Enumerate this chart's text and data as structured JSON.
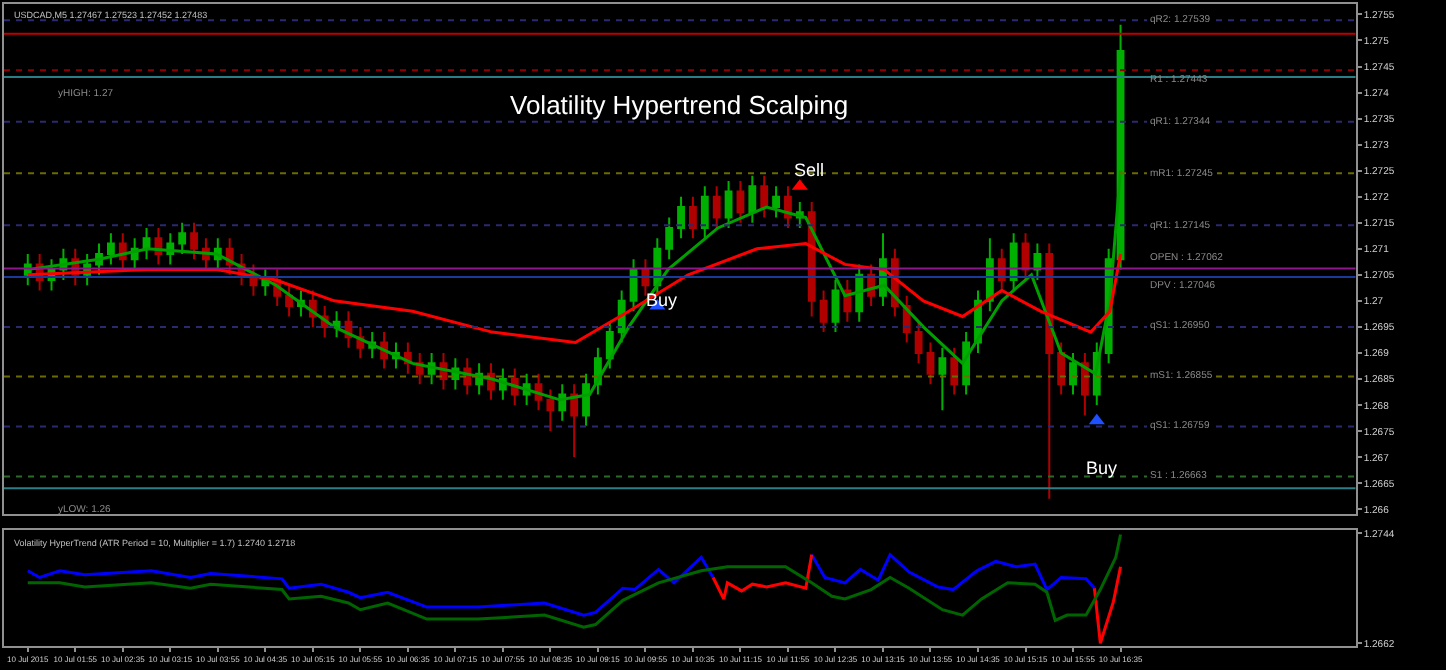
{
  "chart_data": [
    {
      "type": "candlestick",
      "title": "Volatility Hypertrend Scalping",
      "tick_labels": "y",
      "grid": false,
      "annotations": [
        "USDCAD,M5 1.27467 1.27523 1.27452 1.27483",
        "yHIGH: 1.27",
        "yLOW: 1.26",
        {
          "text": "Buy",
          "x": "2015-07-10T10:09",
          "y": 1.27
        },
        {
          "text": "Sell",
          "x": "2015-07-10T12:13",
          "y": 1.2725
        },
        {
          "text": "Buy",
          "x": "2015-07-10T16:19",
          "y": 1.2668
        }
      ],
      "x": [
        "2015-07-10T01:15",
        "2015-07-10T01:25",
        "2015-07-10T01:35",
        "2015-07-10T01:45",
        "2015-07-10T01:55",
        "2015-07-10T02:05",
        "2015-07-10T02:15",
        "2015-07-10T02:25",
        "2015-07-10T02:35",
        "2015-07-10T02:45",
        "2015-07-10T02:55",
        "2015-07-10T03:05",
        "2015-07-10T03:15",
        "2015-07-10T03:25",
        "2015-07-10T03:35",
        "2015-07-10T03:45",
        "2015-07-10T03:55",
        "2015-07-10T04:05",
        "2015-07-10T04:15",
        "2015-07-10T04:25",
        "2015-07-10T04:35",
        "2015-07-10T04:45",
        "2015-07-10T04:55",
        "2015-07-10T05:05",
        "2015-07-10T05:15",
        "2015-07-10T05:25",
        "2015-07-10T05:35",
        "2015-07-10T05:45",
        "2015-07-10T05:55",
        "2015-07-10T06:05",
        "2015-07-10T06:15",
        "2015-07-10T06:25",
        "2015-07-10T06:35",
        "2015-07-10T06:45",
        "2015-07-10T06:55",
        "2015-07-10T07:05",
        "2015-07-10T07:15",
        "2015-07-10T07:25",
        "2015-07-10T07:35",
        "2015-07-10T07:45",
        "2015-07-10T07:55",
        "2015-07-10T08:05",
        "2015-07-10T08:15",
        "2015-07-10T08:25",
        "2015-07-10T08:35",
        "2015-07-10T08:45",
        "2015-07-10T08:55",
        "2015-07-10T09:05",
        "2015-07-10T09:15",
        "2015-07-10T09:25",
        "2015-07-10T09:35",
        "2015-07-10T09:45",
        "2015-07-10T09:55",
        "2015-07-10T10:05",
        "2015-07-10T10:15",
        "2015-07-10T10:25",
        "2015-07-10T10:35",
        "2015-07-10T10:45",
        "2015-07-10T10:55",
        "2015-07-10T11:05",
        "2015-07-10T11:15",
        "2015-07-10T11:25",
        "2015-07-10T11:35",
        "2015-07-10T11:45",
        "2015-07-10T11:55",
        "2015-07-10T12:05",
        "2015-07-10T12:15",
        "2015-07-10T12:25",
        "2015-07-10T12:35",
        "2015-07-10T12:45",
        "2015-07-10T12:55",
        "2015-07-10T13:05",
        "2015-07-10T13:15",
        "2015-07-10T13:25",
        "2015-07-10T13:35",
        "2015-07-10T13:45",
        "2015-07-10T13:55",
        "2015-07-10T14:05",
        "2015-07-10T14:15",
        "2015-07-10T14:25",
        "2015-07-10T14:35",
        "2015-07-10T14:45",
        "2015-07-10T14:55",
        "2015-07-10T15:05",
        "2015-07-10T15:15",
        "2015-07-10T15:25",
        "2015-07-10T15:35",
        "2015-07-10T15:45",
        "2015-07-10T15:55",
        "2015-07-10T16:05",
        "2015-07-10T16:15",
        "2015-07-10T16:25",
        "2015-07-10T16:35"
      ],
      "ohlc": [
        [
          1.2705,
          1.2709,
          1.2703,
          1.2707
        ],
        [
          1.2707,
          1.2709,
          1.2702,
          1.2704
        ],
        [
          1.2704,
          1.2708,
          1.2702,
          1.2706
        ],
        [
          1.2706,
          1.271,
          1.2704,
          1.2708
        ],
        [
          1.2708,
          1.271,
          1.2703,
          1.2705
        ],
        [
          1.2705,
          1.2709,
          1.2703,
          1.2707
        ],
        [
          1.2707,
          1.2711,
          1.2705,
          1.2709
        ],
        [
          1.2709,
          1.2713,
          1.2707,
          1.2711
        ],
        [
          1.2711,
          1.2713,
          1.2706,
          1.2708
        ],
        [
          1.2708,
          1.2712,
          1.2706,
          1.271
        ],
        [
          1.271,
          1.2714,
          1.2708,
          1.2712
        ],
        [
          1.2712,
          1.2714,
          1.2707,
          1.2709
        ],
        [
          1.2709,
          1.2713,
          1.2707,
          1.2711
        ],
        [
          1.2711,
          1.2715,
          1.2709,
          1.2713
        ],
        [
          1.2713,
          1.2715,
          1.2708,
          1.271
        ],
        [
          1.271,
          1.2712,
          1.2706,
          1.2708
        ],
        [
          1.2708,
          1.2712,
          1.2706,
          1.271
        ],
        [
          1.271,
          1.2712,
          1.2705,
          1.2707
        ],
        [
          1.2707,
          1.2709,
          1.2703,
          1.2705
        ],
        [
          1.2705,
          1.2707,
          1.2701,
          1.2703
        ],
        [
          1.2703,
          1.2706,
          1.2701,
          1.2704
        ],
        [
          1.2704,
          1.2706,
          1.2699,
          1.2701
        ],
        [
          1.2701,
          1.2703,
          1.2697,
          1.2699
        ],
        [
          1.2699,
          1.2702,
          1.2697,
          1.27
        ],
        [
          1.27,
          1.2702,
          1.2695,
          1.2697
        ],
        [
          1.2697,
          1.2699,
          1.2693,
          1.2695
        ],
        [
          1.2695,
          1.2698,
          1.2693,
          1.2696
        ],
        [
          1.2696,
          1.2698,
          1.2691,
          1.2693
        ],
        [
          1.2693,
          1.2695,
          1.2689,
          1.2691
        ],
        [
          1.2691,
          1.2694,
          1.2689,
          1.2692
        ],
        [
          1.2692,
          1.2694,
          1.2687,
          1.2689
        ],
        [
          1.2689,
          1.2692,
          1.2687,
          1.269
        ],
        [
          1.269,
          1.2692,
          1.2686,
          1.2688
        ],
        [
          1.2688,
          1.269,
          1.2684,
          1.2686
        ],
        [
          1.2686,
          1.269,
          1.2684,
          1.2688
        ],
        [
          1.2688,
          1.269,
          1.2683,
          1.2685
        ],
        [
          1.2685,
          1.2689,
          1.2683,
          1.2687
        ],
        [
          1.2687,
          1.2689,
          1.2682,
          1.2684
        ],
        [
          1.2684,
          1.2688,
          1.2682,
          1.2686
        ],
        [
          1.2686,
          1.2688,
          1.2681,
          1.2683
        ],
        [
          1.2683,
          1.2687,
          1.2681,
          1.2685
        ],
        [
          1.2685,
          1.2687,
          1.268,
          1.2682
        ],
        [
          1.2682,
          1.2686,
          1.268,
          1.2684
        ],
        [
          1.2684,
          1.2686,
          1.2679,
          1.2681
        ],
        [
          1.2681,
          1.2683,
          1.2675,
          1.2679
        ],
        [
          1.2679,
          1.2684,
          1.2677,
          1.2682
        ],
        [
          1.2682,
          1.2684,
          1.267,
          1.2678
        ],
        [
          1.2678,
          1.2686,
          1.2676,
          1.2684
        ],
        [
          1.2684,
          1.2691,
          1.2682,
          1.2689
        ],
        [
          1.2689,
          1.2696,
          1.2687,
          1.2694
        ],
        [
          1.2694,
          1.2702,
          1.2692,
          1.27
        ],
        [
          1.27,
          1.2708,
          1.2698,
          1.2706
        ],
        [
          1.2706,
          1.2708,
          1.2701,
          1.2703
        ],
        [
          1.2703,
          1.2712,
          1.2701,
          1.271
        ],
        [
          1.271,
          1.2716,
          1.2708,
          1.2714
        ],
        [
          1.2714,
          1.272,
          1.2712,
          1.2718
        ],
        [
          1.2718,
          1.272,
          1.2712,
          1.2714
        ],
        [
          1.2714,
          1.2722,
          1.2712,
          1.272
        ],
        [
          1.272,
          1.2722,
          1.2714,
          1.2716
        ],
        [
          1.2716,
          1.2723,
          1.2714,
          1.2721
        ],
        [
          1.2721,
          1.2723,
          1.2715,
          1.2717
        ],
        [
          1.2717,
          1.2724,
          1.2715,
          1.2722
        ],
        [
          1.2722,
          1.2724,
          1.2716,
          1.2718
        ],
        [
          1.2718,
          1.2722,
          1.2716,
          1.272
        ],
        [
          1.272,
          1.2722,
          1.2714,
          1.2716
        ],
        [
          1.2716,
          1.2719,
          1.2714,
          1.2717
        ],
        [
          1.2717,
          1.2719,
          1.2697,
          1.27
        ],
        [
          1.27,
          1.2702,
          1.2694,
          1.2696
        ],
        [
          1.2696,
          1.2704,
          1.2694,
          1.2702
        ],
        [
          1.2702,
          1.2704,
          1.2696,
          1.2698
        ],
        [
          1.2698,
          1.2707,
          1.2696,
          1.2705
        ],
        [
          1.2705,
          1.2707,
          1.2699,
          1.2701
        ],
        [
          1.2701,
          1.2713,
          1.2699,
          1.2708
        ],
        [
          1.2708,
          1.271,
          1.2697,
          1.2699
        ],
        [
          1.2699,
          1.2701,
          1.2692,
          1.2694
        ],
        [
          1.2694,
          1.2696,
          1.2688,
          1.269
        ],
        [
          1.269,
          1.2692,
          1.2684,
          1.2686
        ],
        [
          1.2686,
          1.2691,
          1.2679,
          1.2689
        ],
        [
          1.2689,
          1.2691,
          1.2682,
          1.2684
        ],
        [
          1.2684,
          1.2694,
          1.2682,
          1.2692
        ],
        [
          1.2692,
          1.2702,
          1.269,
          1.27
        ],
        [
          1.27,
          1.2712,
          1.2698,
          1.2708
        ],
        [
          1.2708,
          1.271,
          1.2702,
          1.2704
        ],
        [
          1.2704,
          1.2713,
          1.2702,
          1.2711
        ],
        [
          1.2711,
          1.2713,
          1.2704,
          1.2706
        ],
        [
          1.2706,
          1.2711,
          1.2704,
          1.2709
        ],
        [
          1.2709,
          1.2711,
          1.2662,
          1.269
        ],
        [
          1.269,
          1.2692,
          1.2682,
          1.2684
        ],
        [
          1.2684,
          1.269,
          1.2682,
          1.2688
        ],
        [
          1.2688,
          1.269,
          1.2678,
          1.2682
        ],
        [
          1.2682,
          1.2692,
          1.268,
          1.269
        ],
        [
          1.269,
          1.271,
          1.2688,
          1.2708
        ],
        [
          1.2708,
          1.2753,
          1.2706,
          1.2748
        ]
      ],
      "series": [
        {
          "type": "line",
          "color": "#00a000",
          "x": [
            "2015-07-10T01:15",
            "2015-07-10T02:15",
            "2015-07-10T02:56",
            "2015-07-10T03:54",
            "2015-07-10T04:44",
            "2015-07-10T05:33",
            "2015-07-10T06:39",
            "2015-07-10T07:46",
            "2015-07-10T08:43",
            "2015-07-10T09:08",
            "2015-07-10T09:41",
            "2015-07-10T10:14",
            "2015-07-10T10:56",
            "2015-07-10T11:37",
            "2015-07-10T12:10",
            "2015-07-10T12:43",
            "2015-07-10T13:16",
            "2015-07-10T13:49",
            "2015-07-10T14:22",
            "2015-07-10T14:55",
            "2015-07-10T15:20",
            "2015-07-10T15:45",
            "2015-07-10T16:14",
            "2015-07-10T16:26",
            "2015-07-10T16:35"
          ],
          "values": [
            1.2706,
            1.2708,
            1.271,
            1.2709,
            1.2703,
            1.2695,
            1.2688,
            1.2685,
            1.2681,
            1.2682,
            1.2695,
            1.2706,
            1.2714,
            1.2718,
            1.2716,
            1.2701,
            1.2703,
            1.2695,
            1.2688,
            1.27,
            1.2705,
            1.269,
            1.2686,
            1.27,
            1.2725
          ]
        },
        {
          "type": "line",
          "color": "#ff0000",
          "x": [
            "2015-07-10T01:15",
            "2015-07-10T02:56",
            "2015-07-10T03:54",
            "2015-07-10T04:44",
            "2015-07-10T05:33",
            "2015-07-10T06:39",
            "2015-07-10T07:46",
            "2015-07-10T08:56",
            "2015-07-10T09:41",
            "2015-07-10T10:31",
            "2015-07-10T11:29",
            "2015-07-10T12:10",
            "2015-07-10T12:43",
            "2015-07-10T13:16",
            "2015-07-10T13:49",
            "2015-07-10T14:22",
            "2015-07-10T14:55",
            "2015-07-10T15:28",
            "2015-07-10T16:10",
            "2015-07-10T16:26",
            "2015-07-10T16:35"
          ],
          "values": [
            1.2705,
            1.2706,
            1.2706,
            1.2704,
            1.27,
            1.2698,
            1.2694,
            1.2692,
            1.2698,
            1.2705,
            1.271,
            1.2711,
            1.2707,
            1.2706,
            1.27,
            1.2697,
            1.2702,
            1.2698,
            1.2694,
            1.2698,
            1.2709
          ]
        },
        {
          "type": "scatter",
          "color": "#1e50ff",
          "marker": "triangle",
          "x": [
            "2015-07-10T10:05",
            "2015-07-10T16:15"
          ],
          "values": [
            1.2699,
            1.2677
          ]
        },
        {
          "type": "scatter",
          "color": "#ff0000",
          "marker": "triangle",
          "x": [
            "2015-07-10T12:05"
          ],
          "values": [
            1.2722
          ]
        }
      ],
      "ref_lines": [
        {
          "axis": "y",
          "value": 1.27539,
          "label": "qR2: 1.27539",
          "color": "#2a2a70",
          "line_style": "dotted"
        },
        {
          "axis": "y",
          "value": 1.27513,
          "label": null,
          "color": "#c00000",
          "line_style": "solid"
        },
        {
          "axis": "y",
          "value": 1.27443,
          "label": "R1 : 1.27443",
          "color": "#900000",
          "line_style": "dotted"
        },
        {
          "axis": "y",
          "value": 1.2743,
          "label": null,
          "color": "#2a7f86",
          "line_style": "solid"
        },
        {
          "axis": "y",
          "value": 1.27344,
          "label": "qR1: 1.27344",
          "color": "#2a2a70",
          "line_style": "dotted"
        },
        {
          "axis": "y",
          "value": 1.27245,
          "label": "mR1: 1.27245",
          "color": "#6b6b00",
          "line_style": "dotted"
        },
        {
          "axis": "y",
          "value": 1.27145,
          "label": "qR1: 1.27145",
          "color": "#2a2a70",
          "line_style": "dotted"
        },
        {
          "axis": "y",
          "value": 1.27062,
          "label": "OPEN : 1.27062",
          "color": "#8a1a8a",
          "line_style": "solid"
        },
        {
          "axis": "y",
          "value": 1.27046,
          "label": "DPV : 1.27046",
          "color": "#1a3a9a",
          "line_style": "solid"
        },
        {
          "axis": "y",
          "value": 1.2695,
          "label": "qS1: 1.26950",
          "color": "#2a2a70",
          "line_style": "dotted"
        },
        {
          "axis": "y",
          "value": 1.26855,
          "label": "mS1: 1.26855",
          "color": "#6b6b00",
          "line_style": "dotted"
        },
        {
          "axis": "y",
          "value": 1.26759,
          "label": "qS1: 1.26759",
          "color": "#2a2a70",
          "line_style": "dotted"
        },
        {
          "axis": "y",
          "value": 1.26663,
          "label": "S1 : 1.26663",
          "color": "#2a6b2a",
          "line_style": "dotted"
        },
        {
          "axis": "y",
          "value": 1.2664,
          "label": null,
          "color": "#2a7f86",
          "line_style": "solid"
        }
      ],
      "xlim": [
        "2015-07-10T00:55",
        "2015-07-10T19:53"
      ],
      "ylim": [
        1.2659,
        1.2757
      ],
      "yticks": [
        1.2755,
        1.275,
        1.2745,
        1.274,
        1.2735,
        1.273,
        1.2725,
        1.272,
        1.2715,
        1.271,
        1.2705,
        1.27,
        1.2695,
        1.269,
        1.2685,
        1.268,
        1.2675,
        1.267,
        1.2665,
        1.266
      ]
    },
    {
      "type": "line",
      "grid": false,
      "annotations": [
        "Volatility HyperTrend (ATR Period = 10, Multiplier = 1.7) 1.2740 1.2718"
      ],
      "series": [
        {
          "color": "#0000ff",
          "x": [
            "2015-07-10T01:15",
            "2015-07-10T01:25",
            "2015-07-10T01:42",
            "2015-07-10T02:03",
            "2015-07-10T02:59",
            "2015-07-10T03:32",
            "2015-07-10T03:49",
            "2015-07-10T04:49",
            "2015-07-10T04:55",
            "2015-07-10T05:22",
            "2015-07-10T05:45",
            "2015-07-10T05:55",
            "2015-07-10T06:18",
            "2015-07-10T06:51",
            "2015-07-10T07:34",
            "2015-07-10T08:30",
            "2015-07-10T09:03",
            "2015-07-10T09:13",
            "2015-07-10T09:36",
            "2015-07-10T09:46",
            "2015-07-10T10:06",
            "2015-07-10T10:19",
            "2015-07-10T10:42",
            "2015-07-10T10:52",
            "2015-07-10T11:30",
            "2015-07-10T12:15",
            "2015-07-10T12:26",
            "2015-07-10T12:43",
            "2015-07-10T12:56",
            "2015-07-10T13:11",
            "2015-07-10T13:21",
            "2015-07-10T13:37",
            "2015-07-10T14:01",
            "2015-07-10T14:14",
            "2015-07-10T14:34",
            "2015-07-10T14:50",
            "2015-07-10T15:07",
            "2015-07-10T15:23",
            "2015-07-10T15:33",
            "2015-07-10T15:45",
            "2015-07-10T16:06",
            "2015-07-10T16:13"
          ],
          "values": [
            1.2716,
            1.2711,
            1.2716,
            1.2713,
            1.2716,
            1.2711,
            1.2714,
            1.271,
            1.2703,
            1.2706,
            1.27,
            1.2696,
            1.27,
            1.2689,
            1.2689,
            1.2692,
            1.2683,
            1.2685,
            1.2703,
            1.2702,
            1.2717,
            1.2707,
            1.2726,
            1.2711,
            null,
            1.2728,
            1.2711,
            1.2707,
            1.2717,
            1.2709,
            1.2728,
            1.2715,
            1.2704,
            1.2702,
            1.2716,
            1.2723,
            1.2719,
            1.2721,
            1.2702,
            1.2711,
            1.271,
            1.2703
          ]
        },
        {
          "color": "#ff0000",
          "x": [
            "2015-07-10T10:52",
            "2015-07-10T11:01",
            "2015-07-10T11:04",
            "2015-07-10T11:16",
            "2015-07-10T11:25",
            "2015-07-10T11:37",
            "2015-07-10T11:53",
            "2015-07-10T12:10",
            "2015-07-10T12:15",
            "2015-07-10T14:00",
            "2015-07-10T16:13",
            "2015-07-10T16:18",
            "2015-07-10T16:29",
            "2015-07-10T16:35"
          ],
          "values": [
            1.2711,
            1.2695,
            1.2707,
            1.2701,
            1.2706,
            1.2704,
            1.2707,
            1.2703,
            1.2728,
            null,
            1.2703,
            1.2662,
            1.2693,
            1.2719
          ]
        },
        {
          "color": "#006400",
          "x": [
            "2015-07-10T01:15",
            "2015-07-10T01:42",
            "2015-07-10T02:03",
            "2015-07-10T02:59",
            "2015-07-10T03:32",
            "2015-07-10T03:49",
            "2015-07-10T04:49",
            "2015-07-10T04:55",
            "2015-07-10T05:22",
            "2015-07-10T05:45",
            "2015-07-10T05:55",
            "2015-07-10T06:18",
            "2015-07-10T06:51",
            "2015-07-10T07:34",
            "2015-07-10T08:30",
            "2015-07-10T09:03",
            "2015-07-10T09:13",
            "2015-07-10T09:36",
            "2015-07-10T10:06",
            "2015-07-10T10:42",
            "2015-07-10T11:04",
            "2015-07-10T11:53",
            "2015-07-10T12:15",
            "2015-07-10T12:32",
            "2015-07-10T12:43",
            "2015-07-10T13:05",
            "2015-07-10T13:21",
            "2015-07-10T13:37",
            "2015-07-10T14:05",
            "2015-07-10T14:22",
            "2015-07-10T14:38",
            "2015-07-10T15:00",
            "2015-07-10T15:23",
            "2015-07-10T15:33",
            "2015-07-10T15:40",
            "2015-07-10T15:50",
            "2015-07-10T16:06",
            "2015-07-10T16:18",
            "2015-07-10T16:31",
            "2015-07-10T16:35"
          ],
          "values": [
            1.2707,
            1.2707,
            1.2704,
            1.2707,
            1.2703,
            1.2706,
            1.2702,
            1.2695,
            1.2697,
            1.2692,
            1.2687,
            1.2692,
            1.268,
            1.268,
            1.2683,
            1.2674,
            1.2676,
            1.2694,
            1.2707,
            1.2716,
            1.2719,
            1.2719,
            1.2707,
            1.2697,
            1.2695,
            1.2702,
            1.2711,
            1.2703,
            1.2687,
            1.2683,
            1.2695,
            1.2707,
            1.2706,
            1.27,
            1.2679,
            1.2683,
            1.2683,
            1.2702,
            1.2726,
            1.2743
          ]
        }
      ],
      "xlim": [
        "2015-07-10T00:55",
        "2015-07-10T19:53"
      ],
      "ylim": [
        1.266,
        1.2746
      ],
      "yticks": [
        1.2744,
        1.2662
      ],
      "xticks": [
        {
          "value": "2015-07-10T01:15",
          "label": "10 Jul 2015"
        },
        {
          "value": "2015-07-10T01:55",
          "label": "10 Jul 01:55"
        },
        {
          "value": "2015-07-10T02:35",
          "label": "10 Jul 02:35"
        },
        {
          "value": "2015-07-10T03:15",
          "label": "10 Jul 03:15"
        },
        {
          "value": "2015-07-10T03:55",
          "label": "10 Jul 03:55"
        },
        {
          "value": "2015-07-10T04:35",
          "label": "10 Jul 04:35"
        },
        {
          "value": "2015-07-10T05:15",
          "label": "10 Jul 05:15"
        },
        {
          "value": "2015-07-10T05:55",
          "label": "10 Jul 05:55"
        },
        {
          "value": "2015-07-10T06:35",
          "label": "10 Jul 06:35"
        },
        {
          "value": "2015-07-10T07:15",
          "label": "10 Jul 07:15"
        },
        {
          "value": "2015-07-10T07:55",
          "label": "10 Jul 07:55"
        },
        {
          "value": "2015-07-10T08:35",
          "label": "10 Jul 08:35"
        },
        {
          "value": "2015-07-10T09:15",
          "label": "10 Jul 09:15"
        },
        {
          "value": "2015-07-10T09:55",
          "label": "10 Jul 09:55"
        },
        {
          "value": "2015-07-10T10:35",
          "label": "10 Jul 10:35"
        },
        {
          "value": "2015-07-10T11:15",
          "label": "10 Jul 11:15"
        },
        {
          "value": "2015-07-10T11:55",
          "label": "10 Jul 11:55"
        },
        {
          "value": "2015-07-10T12:35",
          "label": "10 Jul 12:35"
        },
        {
          "value": "2015-07-10T13:15",
          "label": "10 Jul 13:15"
        },
        {
          "value": "2015-07-10T13:55",
          "label": "10 Jul 13:55"
        },
        {
          "value": "2015-07-10T14:35",
          "label": "10 Jul 14:35"
        },
        {
          "value": "2015-07-10T15:15",
          "label": "10 Jul 15:15"
        },
        {
          "value": "2015-07-10T15:55",
          "label": "10 Jul 15:55"
        },
        {
          "value": "2015-07-10T16:35",
          "label": "10 Jul 16:35"
        }
      ]
    }
  ]
}
